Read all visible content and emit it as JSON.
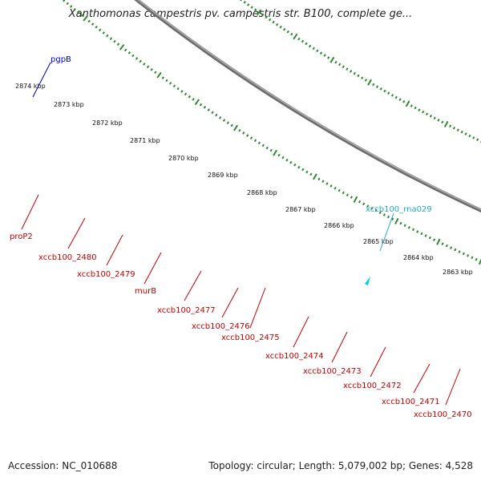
{
  "title": "Xanthomonas campestris pv. campestris str. B100, complete ge...",
  "footer": {
    "accession": "Accession: NC_010688",
    "summary": "Topology: circular; Length: 5,079,002 bp; Genes: 4,528"
  },
  "colors": {
    "backbone": "#8a8a8a",
    "tick": "#2e8b2e",
    "gene_label": "#cc0000",
    "rna_label": "#22aacc",
    "pgpB_label": "#0000cc",
    "cds": "#ee1111",
    "gene_blue": "#0000ee",
    "gene_purple": "#6655cc",
    "gene_olive": "#6b8e23",
    "gene_cyan": "#00ccee",
    "gene_magenta": "#ee1188",
    "gene_gray": "#aaaaaa"
  },
  "scale_labels": [
    "2874 kbp",
    "2873 kbp",
    "2872 kbp",
    "2871 kbp",
    "2870 kbp",
    "2869 kbp",
    "2868 kbp",
    "2867 kbp",
    "2866 kbp",
    "2865 kbp",
    "2864 kbp",
    "2863 kbp"
  ],
  "feature_labels": {
    "pgpB": "pgpB",
    "rna": "xccb100_rna029",
    "genes": [
      "proP2",
      "xccb100_2480",
      "xccb100_2479",
      "murB",
      "xccb100_2477",
      "xccb100_2476",
      "xccb100_2475",
      "xccb100_2474",
      "xccb100_2473",
      "xccb100_2472",
      "xccb100_2471",
      "xccb100_2470"
    ]
  }
}
